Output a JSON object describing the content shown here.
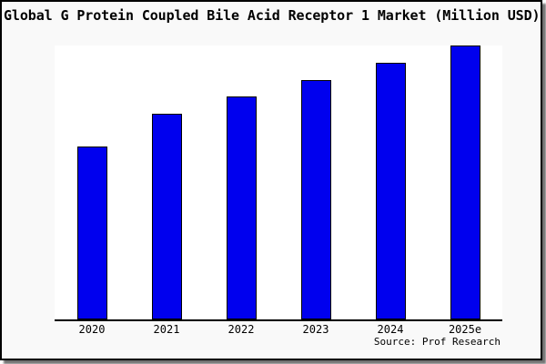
{
  "chart_data": {
    "type": "bar",
    "title": "Global G Protein Coupled Bile Acid Receptor 1 Market (Million USD)",
    "categories": [
      "2020",
      "2021",
      "2022",
      "2023",
      "2024",
      "2025e"
    ],
    "series": [
      {
        "name": "Market size",
        "values_pct_of_max": [
          63.1,
          75.1,
          81.4,
          87.4,
          93.7,
          100
        ]
      }
    ],
    "value_axis_note": "No y-axis, ticks, gridlines or data labels are rendered; values estimated as percent of the tallest (2025e) bar from pixel heights",
    "xlabel": "",
    "ylabel": "",
    "legend": "none",
    "grid": false,
    "bar_color": "#0000ee",
    "bar_border_color": "#000000",
    "plot_background": "#ffffff",
    "page_background": "#f9f9f9",
    "source": "Source: Prof Research"
  }
}
